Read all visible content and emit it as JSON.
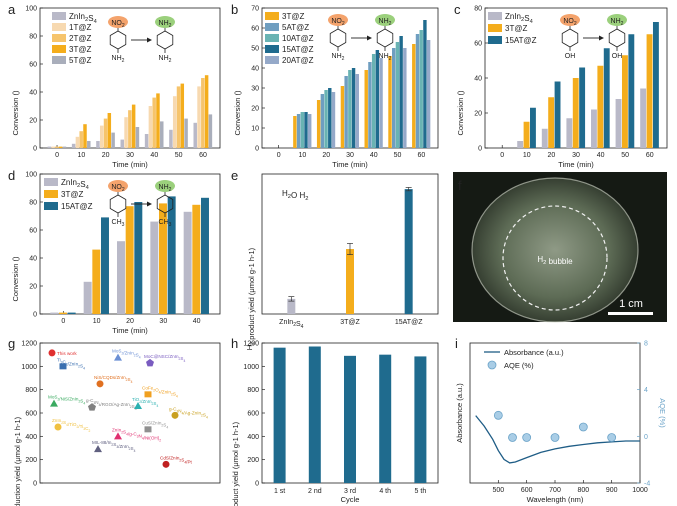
{
  "chart_data": [
    {
      "id": "a",
      "panel_label": "a",
      "type": "bar",
      "title": "",
      "xlabel": "Time (min)",
      "ylabel": "Conversion (%)",
      "ylim": [
        0,
        100
      ],
      "categories": [
        "0",
        "10",
        "20",
        "30",
        "40",
        "50",
        "60"
      ],
      "yticks": [
        "0",
        "20",
        "40",
        "60",
        "80",
        "100"
      ],
      "reactant": {
        "group": "NO2",
        "sub": "NH2"
      },
      "product": {
        "group": "NH2",
        "sub": "NH2"
      },
      "series": [
        {
          "name": "ZnIn2S4",
          "values": [
            1,
            3,
            5,
            6,
            10,
            13,
            18
          ]
        },
        {
          "name": "1T@Z",
          "values": [
            1,
            8,
            16,
            22,
            30,
            37,
            44
          ]
        },
        {
          "name": "2T@Z",
          "values": [
            1,
            12,
            21,
            27,
            36,
            44,
            50
          ]
        },
        {
          "name": "3T@Z",
          "values": [
            1,
            17,
            25,
            31,
            39,
            46,
            52
          ]
        },
        {
          "name": "5T@Z",
          "values": [
            1,
            5,
            11,
            15,
            19,
            21,
            24
          ]
        }
      ]
    },
    {
      "id": "b",
      "panel_label": "b",
      "type": "bar",
      "title": "",
      "xlabel": "Time (min)",
      "ylabel": "Conversion (%)",
      "ylim": [
        0,
        70
      ],
      "categories": [
        "0",
        "10",
        "20",
        "30",
        "40",
        "50",
        "60"
      ],
      "yticks": [
        "0",
        "10",
        "20",
        "30",
        "40",
        "50",
        "60",
        "70"
      ],
      "reactant": {
        "group": "NO2",
        "sub": "NH2"
      },
      "product": {
        "group": "NH2",
        "sub": "NH2"
      },
      "series": [
        {
          "name": "3T@Z",
          "values": [
            0,
            16,
            24,
            31,
            39,
            46,
            52
          ]
        },
        {
          "name": "5AT@Z",
          "values": [
            0,
            17,
            27,
            36,
            43,
            50,
            57
          ]
        },
        {
          "name": "10AT@Z",
          "values": [
            0,
            18,
            29,
            39,
            47,
            53,
            59
          ]
        },
        {
          "name": "15AT@Z",
          "values": [
            0,
            18,
            30,
            40,
            49,
            56,
            64
          ]
        },
        {
          "name": "20AT@Z",
          "values": [
            0,
            17,
            28,
            37,
            45,
            50,
            54
          ]
        }
      ]
    },
    {
      "id": "c",
      "panel_label": "c",
      "type": "bar",
      "title": "",
      "xlabel": "Time (min)",
      "ylabel": "Conversion (%)",
      "ylim": [
        0,
        80
      ],
      "categories": [
        "0",
        "10",
        "20",
        "30",
        "40",
        "50",
        "60"
      ],
      "yticks": [
        "0",
        "20",
        "40",
        "60",
        "80"
      ],
      "reactant": {
        "group": "NO2",
        "sub": "OH"
      },
      "product": {
        "group": "NH2",
        "sub": "OH"
      },
      "series": [
        {
          "name": "ZnIn2S4",
          "values": [
            0,
            4,
            11,
            17,
            22,
            28,
            34
          ]
        },
        {
          "name": "3T@Z",
          "values": [
            0,
            15,
            29,
            40,
            47,
            53,
            65
          ]
        },
        {
          "name": "15AT@Z",
          "values": [
            0,
            23,
            38,
            46,
            57,
            65,
            72
          ]
        }
      ]
    },
    {
      "id": "d",
      "panel_label": "d",
      "type": "bar",
      "title": "",
      "xlabel": "Time (min)",
      "ylabel": "Conversion (%)",
      "ylim": [
        0,
        100
      ],
      "categories": [
        "0",
        "10",
        "20",
        "30",
        "40"
      ],
      "yticks": [
        "0",
        "20",
        "40",
        "60",
        "80",
        "100"
      ],
      "reactant": {
        "group": "NO2",
        "sub": "CH3"
      },
      "product": {
        "group": "NH2",
        "sub": "CH3"
      },
      "series": [
        {
          "name": "ZnIn2S4",
          "values": [
            1,
            23,
            52,
            66,
            73
          ]
        },
        {
          "name": "3T@Z",
          "values": [
            1,
            46,
            77,
            79,
            78
          ]
        },
        {
          "name": "15AT@Z",
          "values": [
            1,
            69,
            80,
            84,
            83
          ]
        }
      ]
    },
    {
      "id": "e",
      "panel_label": "e",
      "type": "bar",
      "title": "",
      "xlabel": "",
      "ylabel": "H2 product yield (μmol g-1 h-1)",
      "ylim": [
        0,
        1250
      ],
      "categories": [
        "ZnIn2S4",
        "3T@Z",
        "15AT@Z"
      ],
      "values": [
        135,
        580,
        1115
      ],
      "errors": [
        20,
        50,
        15
      ],
      "annotation": "H2O → H2"
    },
    {
      "id": "g",
      "panel_label": "g",
      "type": "scatter",
      "title": "",
      "xlabel": "",
      "ylabel": "H2 production yield (μmol g-1 h-1)",
      "ylim": [
        0,
        1200
      ],
      "yticks": [
        "0",
        "200",
        "400",
        "600",
        "800",
        "1000",
        "1200"
      ],
      "points": [
        {
          "label": "This work",
          "value": 1115,
          "color": "#e03030"
        },
        {
          "label": "Ti3C2/ZnIn2S4",
          "value": 1000,
          "color": "#3a6fb0"
        },
        {
          "label": "MoS2/ZnIn2S4",
          "value": 1075,
          "color": "#6b8fd4"
        },
        {
          "label": "MoC@NSC/ZnIn2S4",
          "value": 1030,
          "color": "#7a5cc0"
        },
        {
          "label": "NiS/CQDs/ZnIn2S4",
          "value": 850,
          "color": "#e07020"
        },
        {
          "label": "CoFe2O4/ZnIn2S4",
          "value": 760,
          "color": "#f0a020"
        },
        {
          "label": "MoS2/NiS/ZnIn2S4",
          "value": 680,
          "color": "#3aaa60"
        },
        {
          "label": "g-C3N4/RGO/Ag-ZnIn2S4",
          "value": 650,
          "color": "#808080"
        },
        {
          "label": "TiO2/ZnIn2S4",
          "value": 660,
          "color": "#2ab0b0"
        },
        {
          "label": "g-C3N4/Ag-ZnIn2S4",
          "value": 580,
          "color": "#c9a020"
        },
        {
          "label": "ZnIn2S4/TiO2/Ti3C2",
          "value": 480,
          "color": "#f0c040"
        },
        {
          "label": "CuS/ZnIn2S4",
          "value": 460,
          "color": "#909090"
        },
        {
          "label": "ZnIn2S4/g-C3N4/Ni(OH)2",
          "value": 400,
          "color": "#e03070"
        },
        {
          "label": "MIL-88/In2S3/ZnIn2S4",
          "value": 290,
          "color": "#606080"
        },
        {
          "label": "CdS/ZnIn2S4/Pt",
          "value": 160,
          "color": "#c02020"
        }
      ]
    },
    {
      "id": "h",
      "panel_label": "h",
      "type": "bar",
      "title": "",
      "xlabel": "Cycle",
      "ylabel": "H2 product yield (μmol g-1 h-1)",
      "ylim": [
        0,
        1200
      ],
      "yticks": [
        "0",
        "200",
        "400",
        "600",
        "800",
        "1000",
        "1200"
      ],
      "categories": [
        "1 st",
        "2 nd",
        "3 rd",
        "4 th",
        "5 th"
      ],
      "values": [
        1160,
        1170,
        1090,
        1100,
        1085
      ]
    },
    {
      "id": "i",
      "panel_label": "i",
      "type": "line",
      "title": "",
      "xlabel": "Wavelength (nm)",
      "ylabel": "Absorbance (a.u.)",
      "ylabel_right": "AQE (%)",
      "xlim": [
        400,
        1000
      ],
      "xticks": [
        "500",
        "600",
        "700",
        "800",
        "900",
        "1000"
      ],
      "y2lim": [
        -4,
        8
      ],
      "y2ticks": [
        "-4",
        "0",
        "4",
        "8"
      ],
      "series": [
        {
          "name": "Absorbance (a.u.)",
          "x": [
            420,
            450,
            480,
            500,
            520,
            540,
            560,
            600,
            650,
            700,
            750,
            800,
            850,
            900,
            950,
            1000
          ],
          "y": [
            0.62,
            0.5,
            0.35,
            0.22,
            0.12,
            0.08,
            0.09,
            0.14,
            0.2,
            0.24,
            0.27,
            0.29,
            0.31,
            0.32,
            0.33,
            0.33
          ]
        },
        {
          "name": "AQE (%)",
          "x": [
            500,
            550,
            600,
            700,
            800,
            900
          ],
          "y": [
            1.8,
            -0.1,
            -0.1,
            -0.1,
            0.8,
            -0.1
          ]
        }
      ]
    }
  ],
  "photo": {
    "panel_label": "f",
    "bubble_label": "H2 bubble",
    "scalebar_label": "1 cm"
  },
  "colors": {
    "ZnIn2S4": "#b9b9c8",
    "1T@Z": "#f7d9b0",
    "2T@Z": "#f6c46c",
    "3T@Z": "#f4ad1c",
    "5T@Z": "#a9aebb",
    "5AT@Z": "#6f9ec0",
    "10AT@Z": "#69b3b3",
    "15AT@Z": "#1f6b8e",
    "20AT@Z": "#95a9c9",
    "no2": "#f4a36c",
    "nh2": "#9bd07c"
  }
}
